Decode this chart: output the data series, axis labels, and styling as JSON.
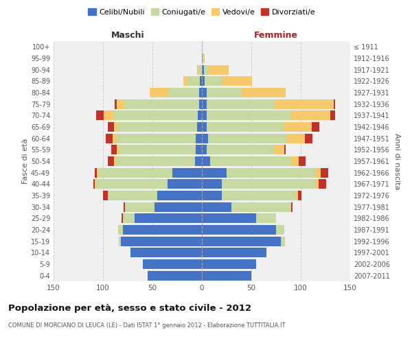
{
  "age_groups": [
    "0-4",
    "5-9",
    "10-14",
    "15-19",
    "20-24",
    "25-29",
    "30-34",
    "35-39",
    "40-44",
    "45-49",
    "50-54",
    "55-59",
    "60-64",
    "65-69",
    "70-74",
    "75-79",
    "80-84",
    "85-89",
    "90-94",
    "95-99",
    "100+"
  ],
  "birth_years": [
    "2007-2011",
    "2002-2006",
    "1997-2001",
    "1992-1996",
    "1987-1991",
    "1982-1986",
    "1977-1981",
    "1972-1976",
    "1967-1971",
    "1962-1966",
    "1957-1961",
    "1952-1956",
    "1947-1951",
    "1942-1946",
    "1937-1941",
    "1932-1936",
    "1927-1931",
    "1922-1926",
    "1917-1921",
    "1912-1916",
    "≤ 1911"
  ],
  "male": {
    "celibe": [
      55,
      60,
      72,
      82,
      80,
      68,
      48,
      45,
      35,
      30,
      7,
      6,
      6,
      5,
      4,
      3,
      3,
      2,
      0,
      0,
      0
    ],
    "coniugato": [
      0,
      0,
      0,
      2,
      5,
      12,
      30,
      50,
      72,
      75,
      80,
      78,
      80,
      80,
      85,
      75,
      30,
      12,
      3,
      0,
      0
    ],
    "vedovo": [
      0,
      0,
      0,
      0,
      0,
      0,
      0,
      0,
      1,
      1,
      2,
      2,
      4,
      4,
      10,
      8,
      20,
      5,
      2,
      0,
      0
    ],
    "divorziato": [
      0,
      0,
      0,
      0,
      0,
      1,
      1,
      5,
      2,
      2,
      6,
      6,
      7,
      6,
      8,
      2,
      0,
      0,
      0,
      0,
      0
    ]
  },
  "female": {
    "nubile": [
      50,
      55,
      65,
      80,
      75,
      55,
      30,
      20,
      20,
      25,
      8,
      5,
      6,
      5,
      5,
      5,
      5,
      3,
      2,
      1,
      0
    ],
    "coniugata": [
      0,
      0,
      0,
      4,
      8,
      20,
      60,
      75,
      95,
      90,
      82,
      68,
      80,
      78,
      85,
      68,
      35,
      18,
      5,
      0,
      0
    ],
    "vedova": [
      0,
      0,
      0,
      0,
      0,
      0,
      0,
      2,
      3,
      5,
      8,
      10,
      18,
      28,
      40,
      60,
      45,
      30,
      20,
      2,
      0
    ],
    "divorziata": [
      0,
      0,
      0,
      0,
      0,
      0,
      2,
      4,
      8,
      8,
      7,
      2,
      8,
      8,
      5,
      2,
      0,
      0,
      0,
      0,
      0
    ]
  },
  "colors": {
    "celibe_nubile": "#4472C4",
    "coniugato_a": "#c5d9a0",
    "vedovo_a": "#f5c96c",
    "divorziato_a": "#c0332a"
  },
  "xlim": 150,
  "title": "Popolazione per età, sesso e stato civile - 2012",
  "subtitle": "COMUNE DI MORCIANO DI LEUCA (LE) - Dati ISTAT 1° gennaio 2012 - Elaborazione TUTTITALIA.IT",
  "xlabel_left": "Maschi",
  "xlabel_right": "Femmine",
  "ylabel_left": "Fasce di età",
  "ylabel_right": "Anni di nascita",
  "legend_labels": [
    "Celibi/Nubili",
    "Coniugati/e",
    "Vedovi/e",
    "Divorziati/e"
  ],
  "bg_color": "#f0f0f0",
  "grid_color": "#cccccc"
}
